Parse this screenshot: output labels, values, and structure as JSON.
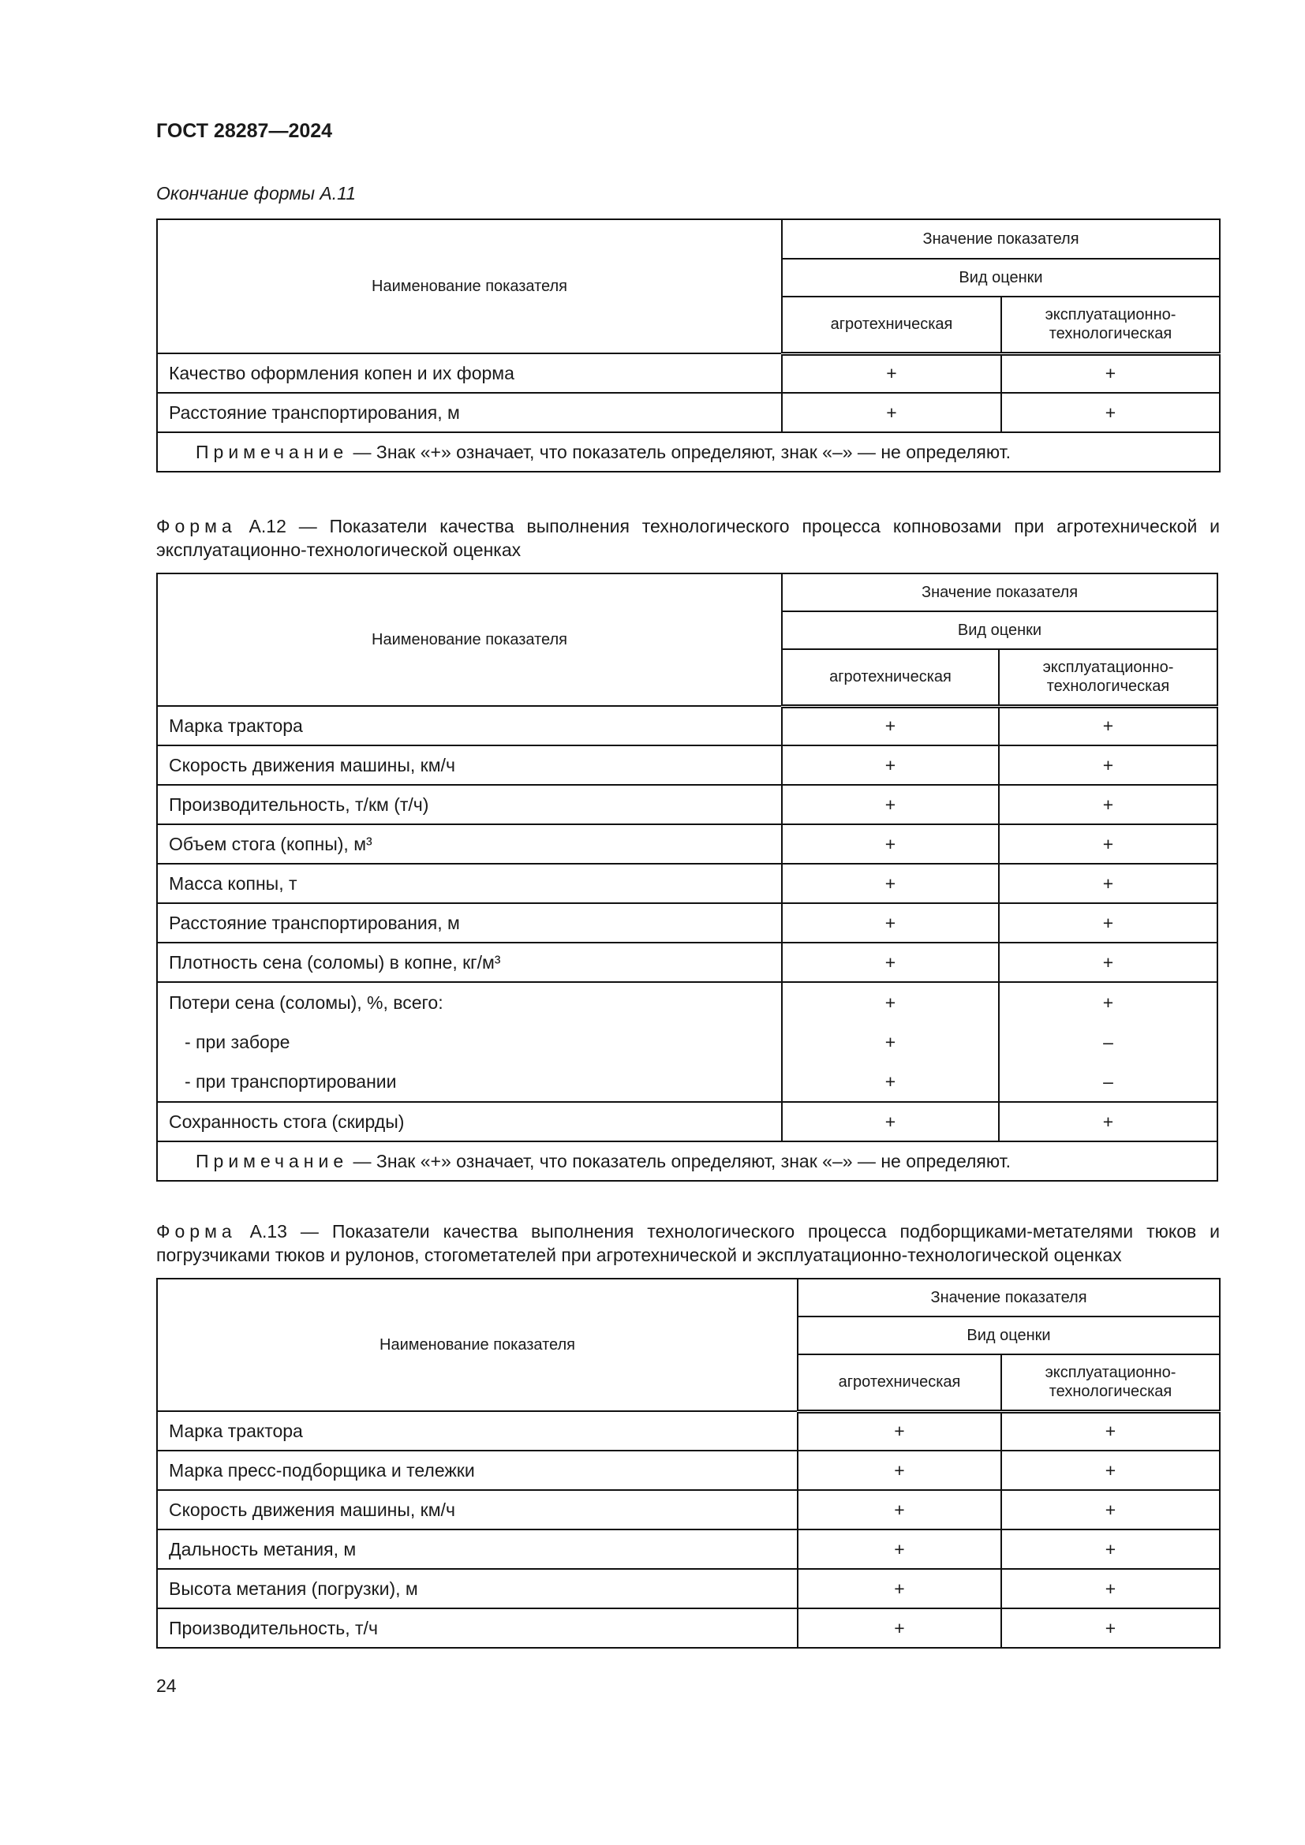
{
  "header": {
    "doc_code": "ГОСТ 28287—2024",
    "continuation": "Окончание формы А.11"
  },
  "common": {
    "col_name": "Наименование показателя",
    "col_value": "Значение показателя",
    "col_type": "Вид оценки",
    "col_agro": "агротехническая",
    "col_expl": "эксплуатационно-технологическая",
    "note_word": "Примечание",
    "note_text": " — Знак «+» означает, что показатель определяют, знак «–» — не определяют."
  },
  "tables": [
    {
      "rows": [
        {
          "name": "Качество оформления копен и их форма",
          "agro": "+",
          "expl": "+"
        },
        {
          "name": "Расстояние транспортирования, м",
          "agro": "+",
          "expl": "+"
        }
      ],
      "has_note": true
    },
    {
      "caption_word": "Форма",
      "caption_text": " А.12 — Показатели качества выполнения технологического процесса копновозами при агротехнической и эксплуатационно-технологической оценках",
      "rows": [
        {
          "name": "Марка трактора",
          "agro": "+",
          "expl": "+"
        },
        {
          "name": "Скорость движения машины, км/ч",
          "agro": "+",
          "expl": "+"
        },
        {
          "name": "Производительность, т/км (т/ч)",
          "agro": "+",
          "expl": "+"
        },
        {
          "name": "Объем стога (копны), м³",
          "agro": "+",
          "expl": "+"
        },
        {
          "name": "Масса копны, т",
          "agro": "+",
          "expl": "+"
        },
        {
          "name": "Расстояние транспортирования, м",
          "agro": "+",
          "expl": "+"
        },
        {
          "name": "Плотность сена (соломы) в копне, кг/м³",
          "agro": "+",
          "expl": "+"
        },
        {
          "group": [
            {
              "name": "Потери сена (соломы), %, всего:",
              "agro": "+",
              "expl": "+"
            },
            {
              "name": "  -  при заборе",
              "agro": "+",
              "expl": "–"
            },
            {
              "name": "  -  при транспортировании",
              "agro": "+",
              "expl": "–"
            }
          ]
        },
        {
          "name": "Сохранность стога (скирды)",
          "agro": "+",
          "expl": "+"
        }
      ],
      "has_note": true
    },
    {
      "caption_word": "Форма",
      "caption_text": " А.13 — Показатели качества выполнения технологического процесса подборщиками-метателями тюков и погрузчиками тюков и рулонов, стогометателей при агротехнической и эксплуатационно-технологической оценках",
      "rows": [
        {
          "name": "Марка трактора",
          "agro": "+",
          "expl": "+"
        },
        {
          "name": "Марка пресс-подборщика и тележки",
          "agro": "+",
          "expl": "+"
        },
        {
          "name": "Скорость движения машины, км/ч",
          "agro": "+",
          "expl": "+"
        },
        {
          "name": "Дальность метания, м",
          "agro": "+",
          "expl": "+"
        },
        {
          "name": "Высота метания (погрузки), м",
          "agro": "+",
          "expl": "+"
        },
        {
          "name": "Производительность, т/ч",
          "agro": "+",
          "expl": "+"
        }
      ],
      "has_note": false
    }
  ],
  "footer": {
    "page_number": "24"
  }
}
